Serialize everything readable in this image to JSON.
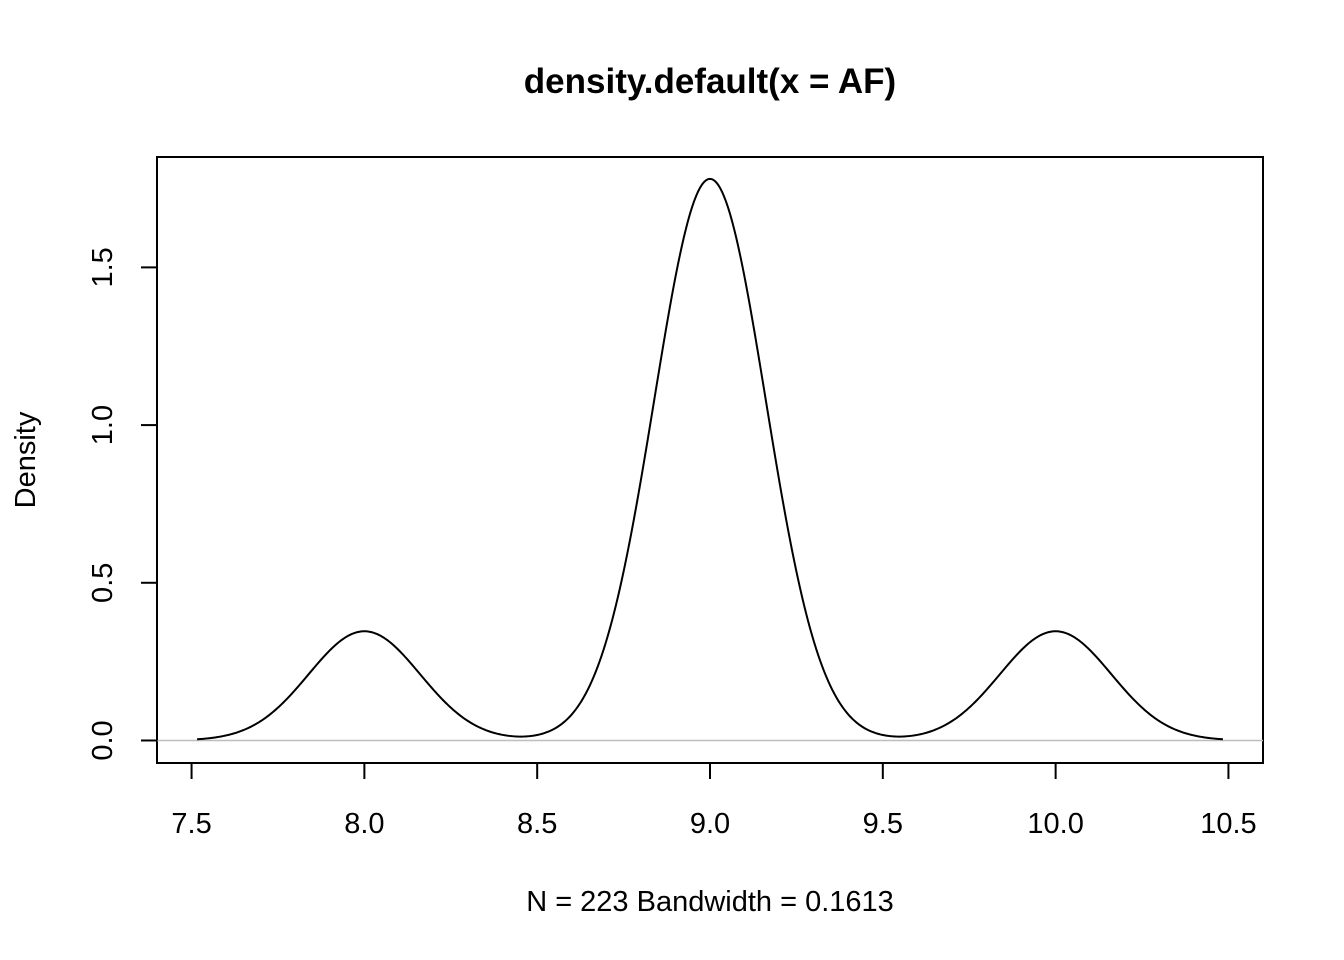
{
  "chart_data": {
    "type": "line",
    "title": "density.default(x = AF)",
    "xlabel": "N = 223   Bandwidth = 0.1613",
    "ylabel": "Density",
    "xlim": [
      7.4,
      10.6
    ],
    "ylim": [
      -0.0714,
      1.85
    ],
    "x_ticks": [
      "7.5",
      "8.0",
      "8.5",
      "9.0",
      "9.5",
      "10.0",
      "10.5"
    ],
    "y_ticks": [
      "0.0",
      "0.5",
      "1.0",
      "1.5"
    ],
    "zero_line": true,
    "grid": false,
    "series": [
      {
        "components": [
          {
            "mean": 8.0,
            "weight": 0.14
          },
          {
            "mean": 9.0,
            "weight": 0.72
          },
          {
            "mean": 10.0,
            "weight": 0.14
          }
        ],
        "bandwidth": 0.1613,
        "x_range": [
          7.516,
          10.484
        ],
        "peaks": [
          {
            "x": 8.0,
            "y": 0.345
          },
          {
            "x": 9.0,
            "y": 1.78
          },
          {
            "x": 10.0,
            "y": 0.345
          }
        ]
      }
    ]
  }
}
